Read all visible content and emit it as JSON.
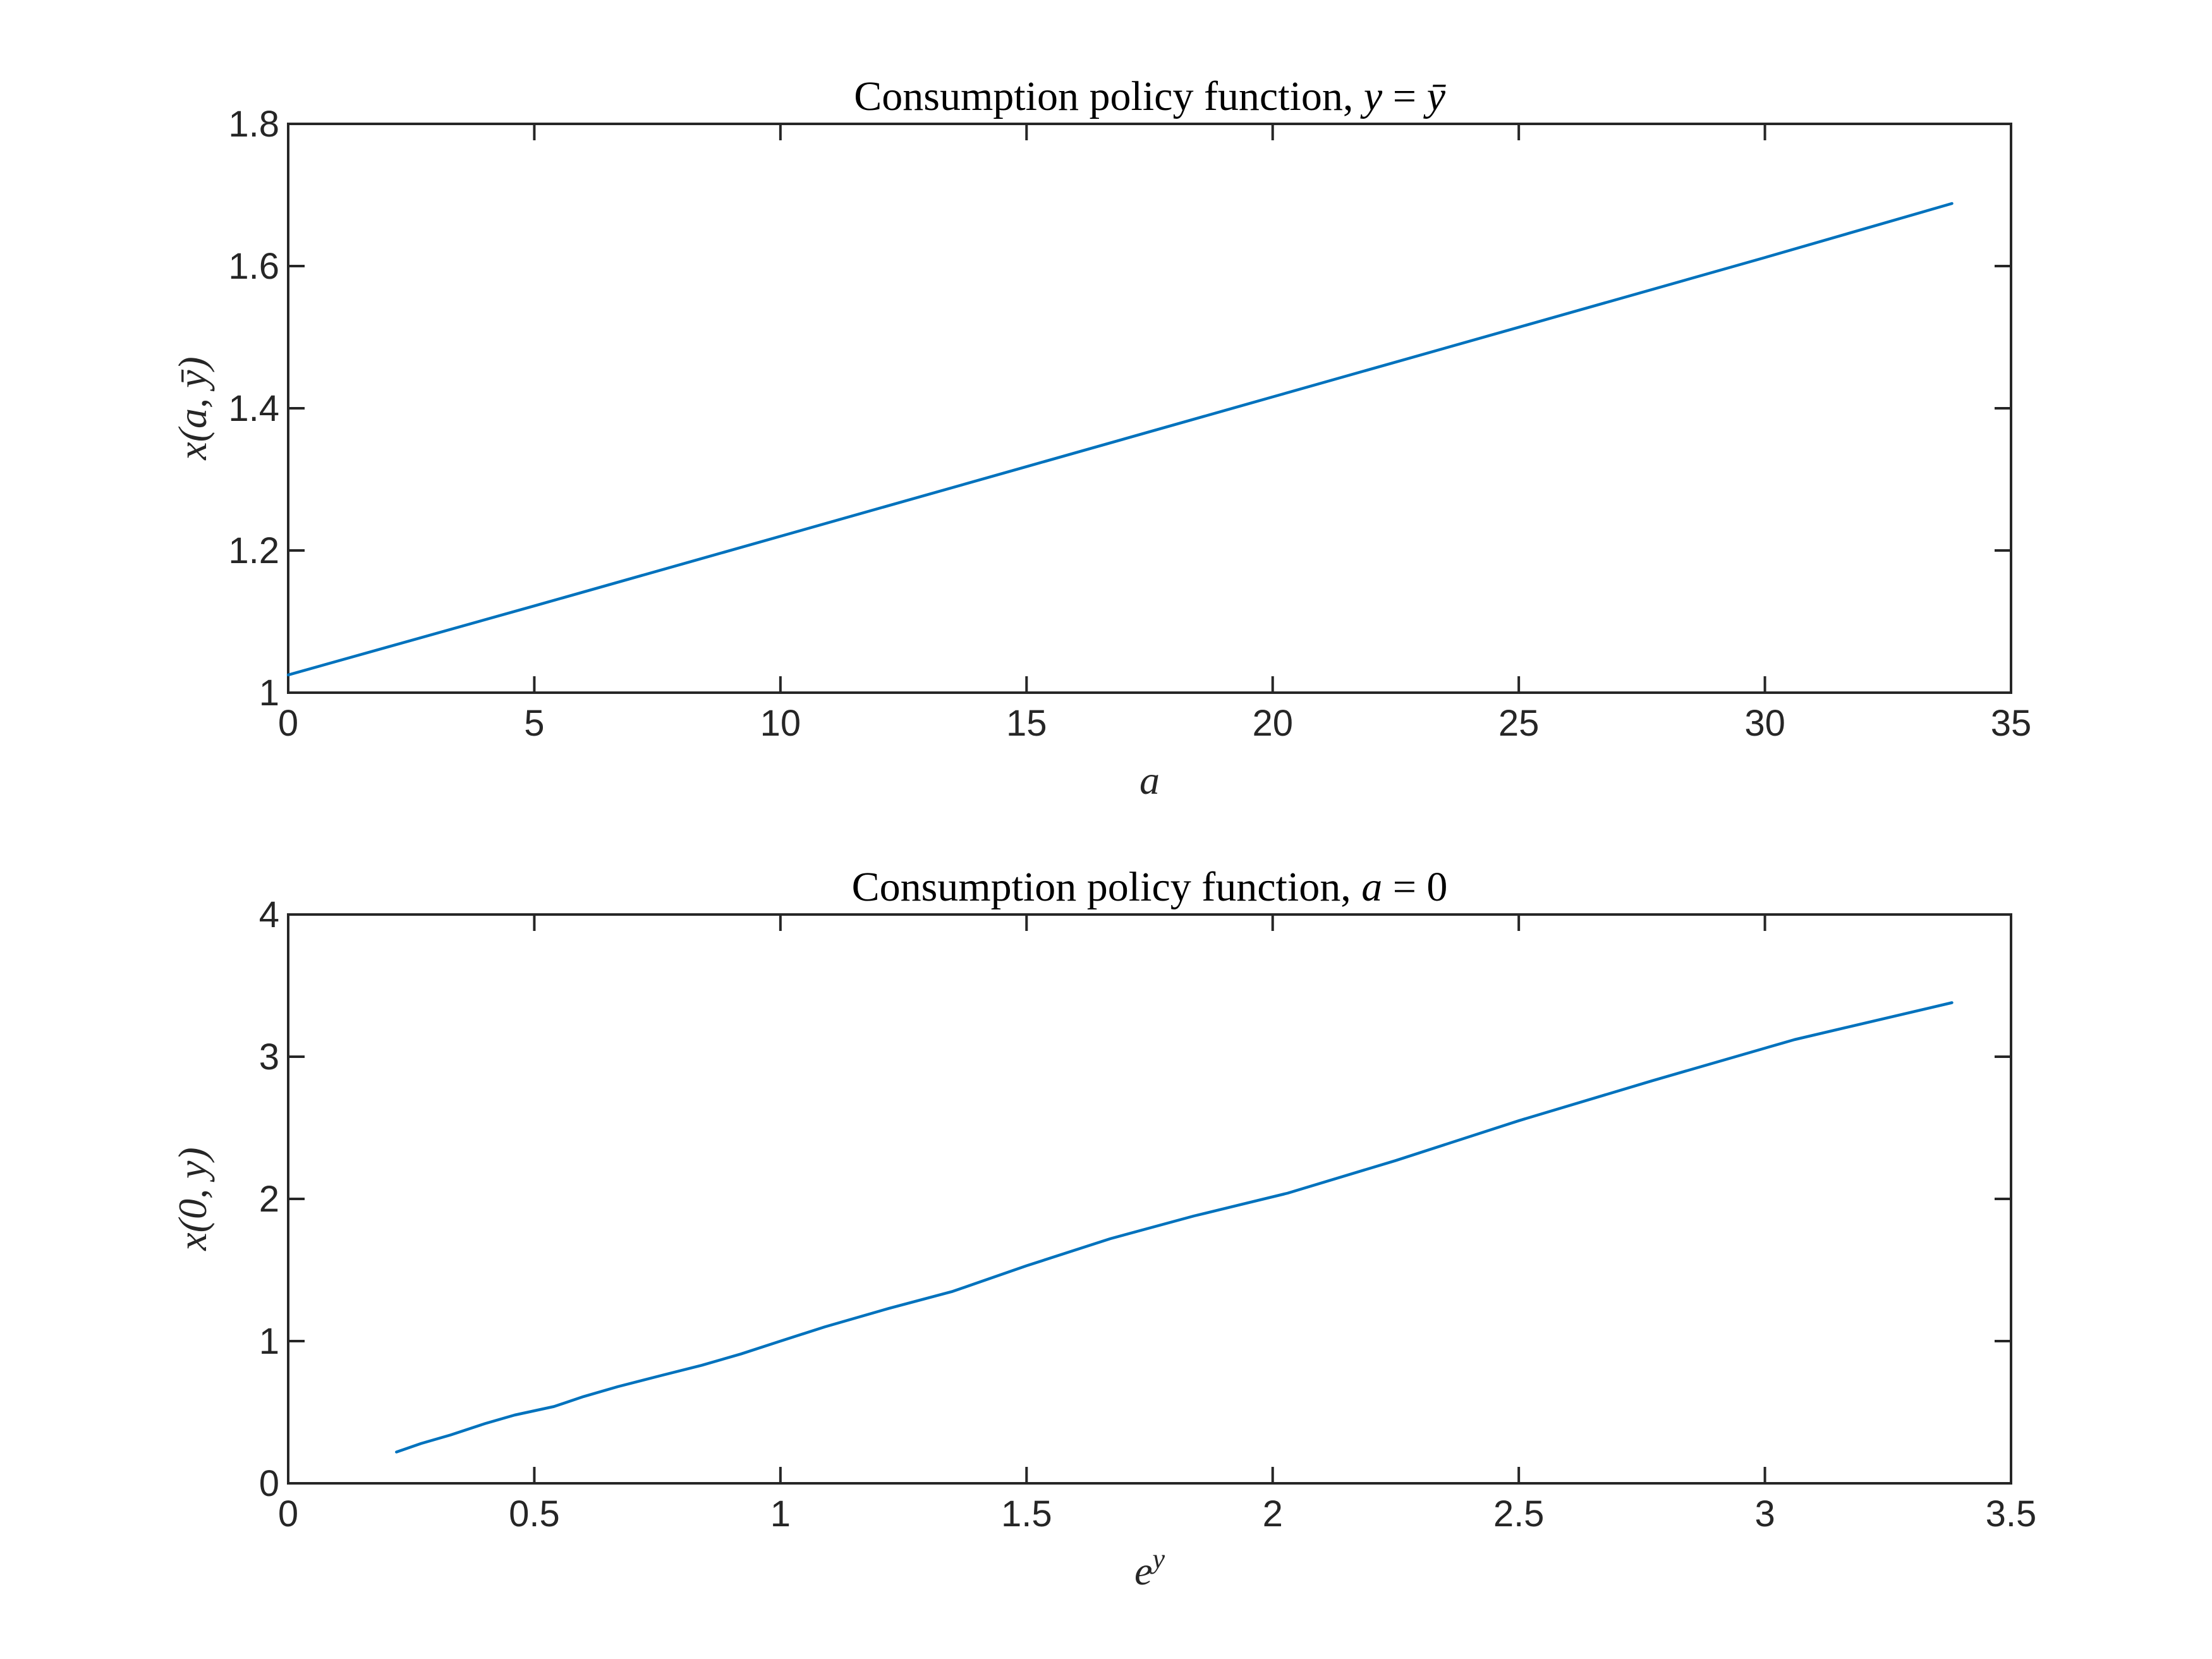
{
  "colors": {
    "series": "#0072BD",
    "axes": "#262626"
  },
  "chart_data": [
    {
      "type": "line",
      "title": "Consumption policy function, y = ȳ",
      "xlabel": "a",
      "ylabel": "x(a, ȳ)",
      "xlim": [
        0,
        35
      ],
      "ylim": [
        1,
        1.8
      ],
      "xticks": [
        0,
        5,
        10,
        15,
        20,
        25,
        30,
        35
      ],
      "yticks": [
        1,
        1.2,
        1.4,
        1.6,
        1.8
      ],
      "xtick_labels": [
        "0",
        "5",
        "10",
        "15",
        "20",
        "25",
        "30",
        "35"
      ],
      "ytick_labels": [
        "1",
        "1.2",
        "1.4",
        "1.6",
        "1.8"
      ],
      "grid": false,
      "series": [
        {
          "x": [
            0,
            5,
            10,
            15,
            20,
            25,
            30,
            33.8
          ],
          "y": [
            1.025,
            1.122,
            1.22,
            1.318,
            1.416,
            1.514,
            1.612,
            1.688
          ]
        }
      ]
    },
    {
      "type": "line",
      "title": "Consumption policy function, a = 0",
      "xlabel": "e^y",
      "ylabel": "x(0, y)",
      "xlim": [
        0,
        3.5
      ],
      "ylim": [
        0,
        4
      ],
      "xticks": [
        0,
        0.5,
        1,
        1.5,
        2,
        2.5,
        3,
        3.5
      ],
      "yticks": [
        0,
        1,
        2,
        3,
        4
      ],
      "xtick_labels": [
        "0",
        "0.5",
        "1",
        "1.5",
        "2",
        "2.5",
        "3",
        "3.5"
      ],
      "ytick_labels": [
        "0",
        "1",
        "2",
        "3",
        "4"
      ],
      "grid": false,
      "series": [
        {
          "x": [
            0.22,
            0.27,
            0.33,
            0.4,
            0.46,
            0.54,
            0.6,
            0.67,
            0.76,
            0.84,
            0.92,
            1.0,
            1.09,
            1.22,
            1.35,
            1.5,
            1.67,
            1.84,
            2.03,
            2.25,
            2.5,
            2.77,
            3.06,
            3.38
          ],
          "y": [
            0.22,
            0.28,
            0.34,
            0.42,
            0.48,
            0.54,
            0.61,
            0.68,
            0.76,
            0.83,
            0.91,
            1.0,
            1.1,
            1.23,
            1.35,
            1.53,
            1.72,
            1.88,
            2.04,
            2.27,
            2.55,
            2.83,
            3.12,
            3.38
          ]
        }
      ]
    }
  ]
}
